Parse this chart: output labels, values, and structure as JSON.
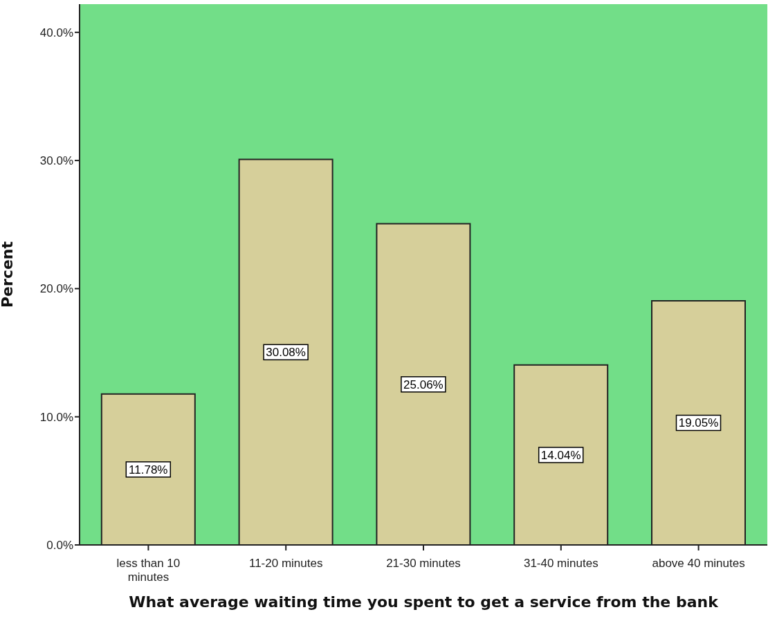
{
  "chart_data": {
    "type": "bar",
    "xlabel": "What average waiting time you spent to get a service from the bank",
    "ylabel": "Percent",
    "categories": [
      "less than 10 minutes",
      "11-20 minutes",
      "21-30 minutes",
      "31-40 minutes",
      "above 40 minutes"
    ],
    "values": [
      11.78,
      30.08,
      25.06,
      14.04,
      19.05
    ],
    "value_labels": [
      "11.78%",
      "30.08%",
      "25.06%",
      "14.04%",
      "19.05%"
    ],
    "color": "#d6cf9a",
    "ylim": [
      0,
      42.2
    ],
    "yticks": [
      {
        "value": 0,
        "label": "0.0%"
      },
      {
        "value": 10,
        "label": "10.0%"
      },
      {
        "value": 20,
        "label": "20.0%"
      },
      {
        "value": 30,
        "label": "30.0%"
      },
      {
        "value": 40,
        "label": "40.0%"
      }
    ],
    "grid": false
  }
}
